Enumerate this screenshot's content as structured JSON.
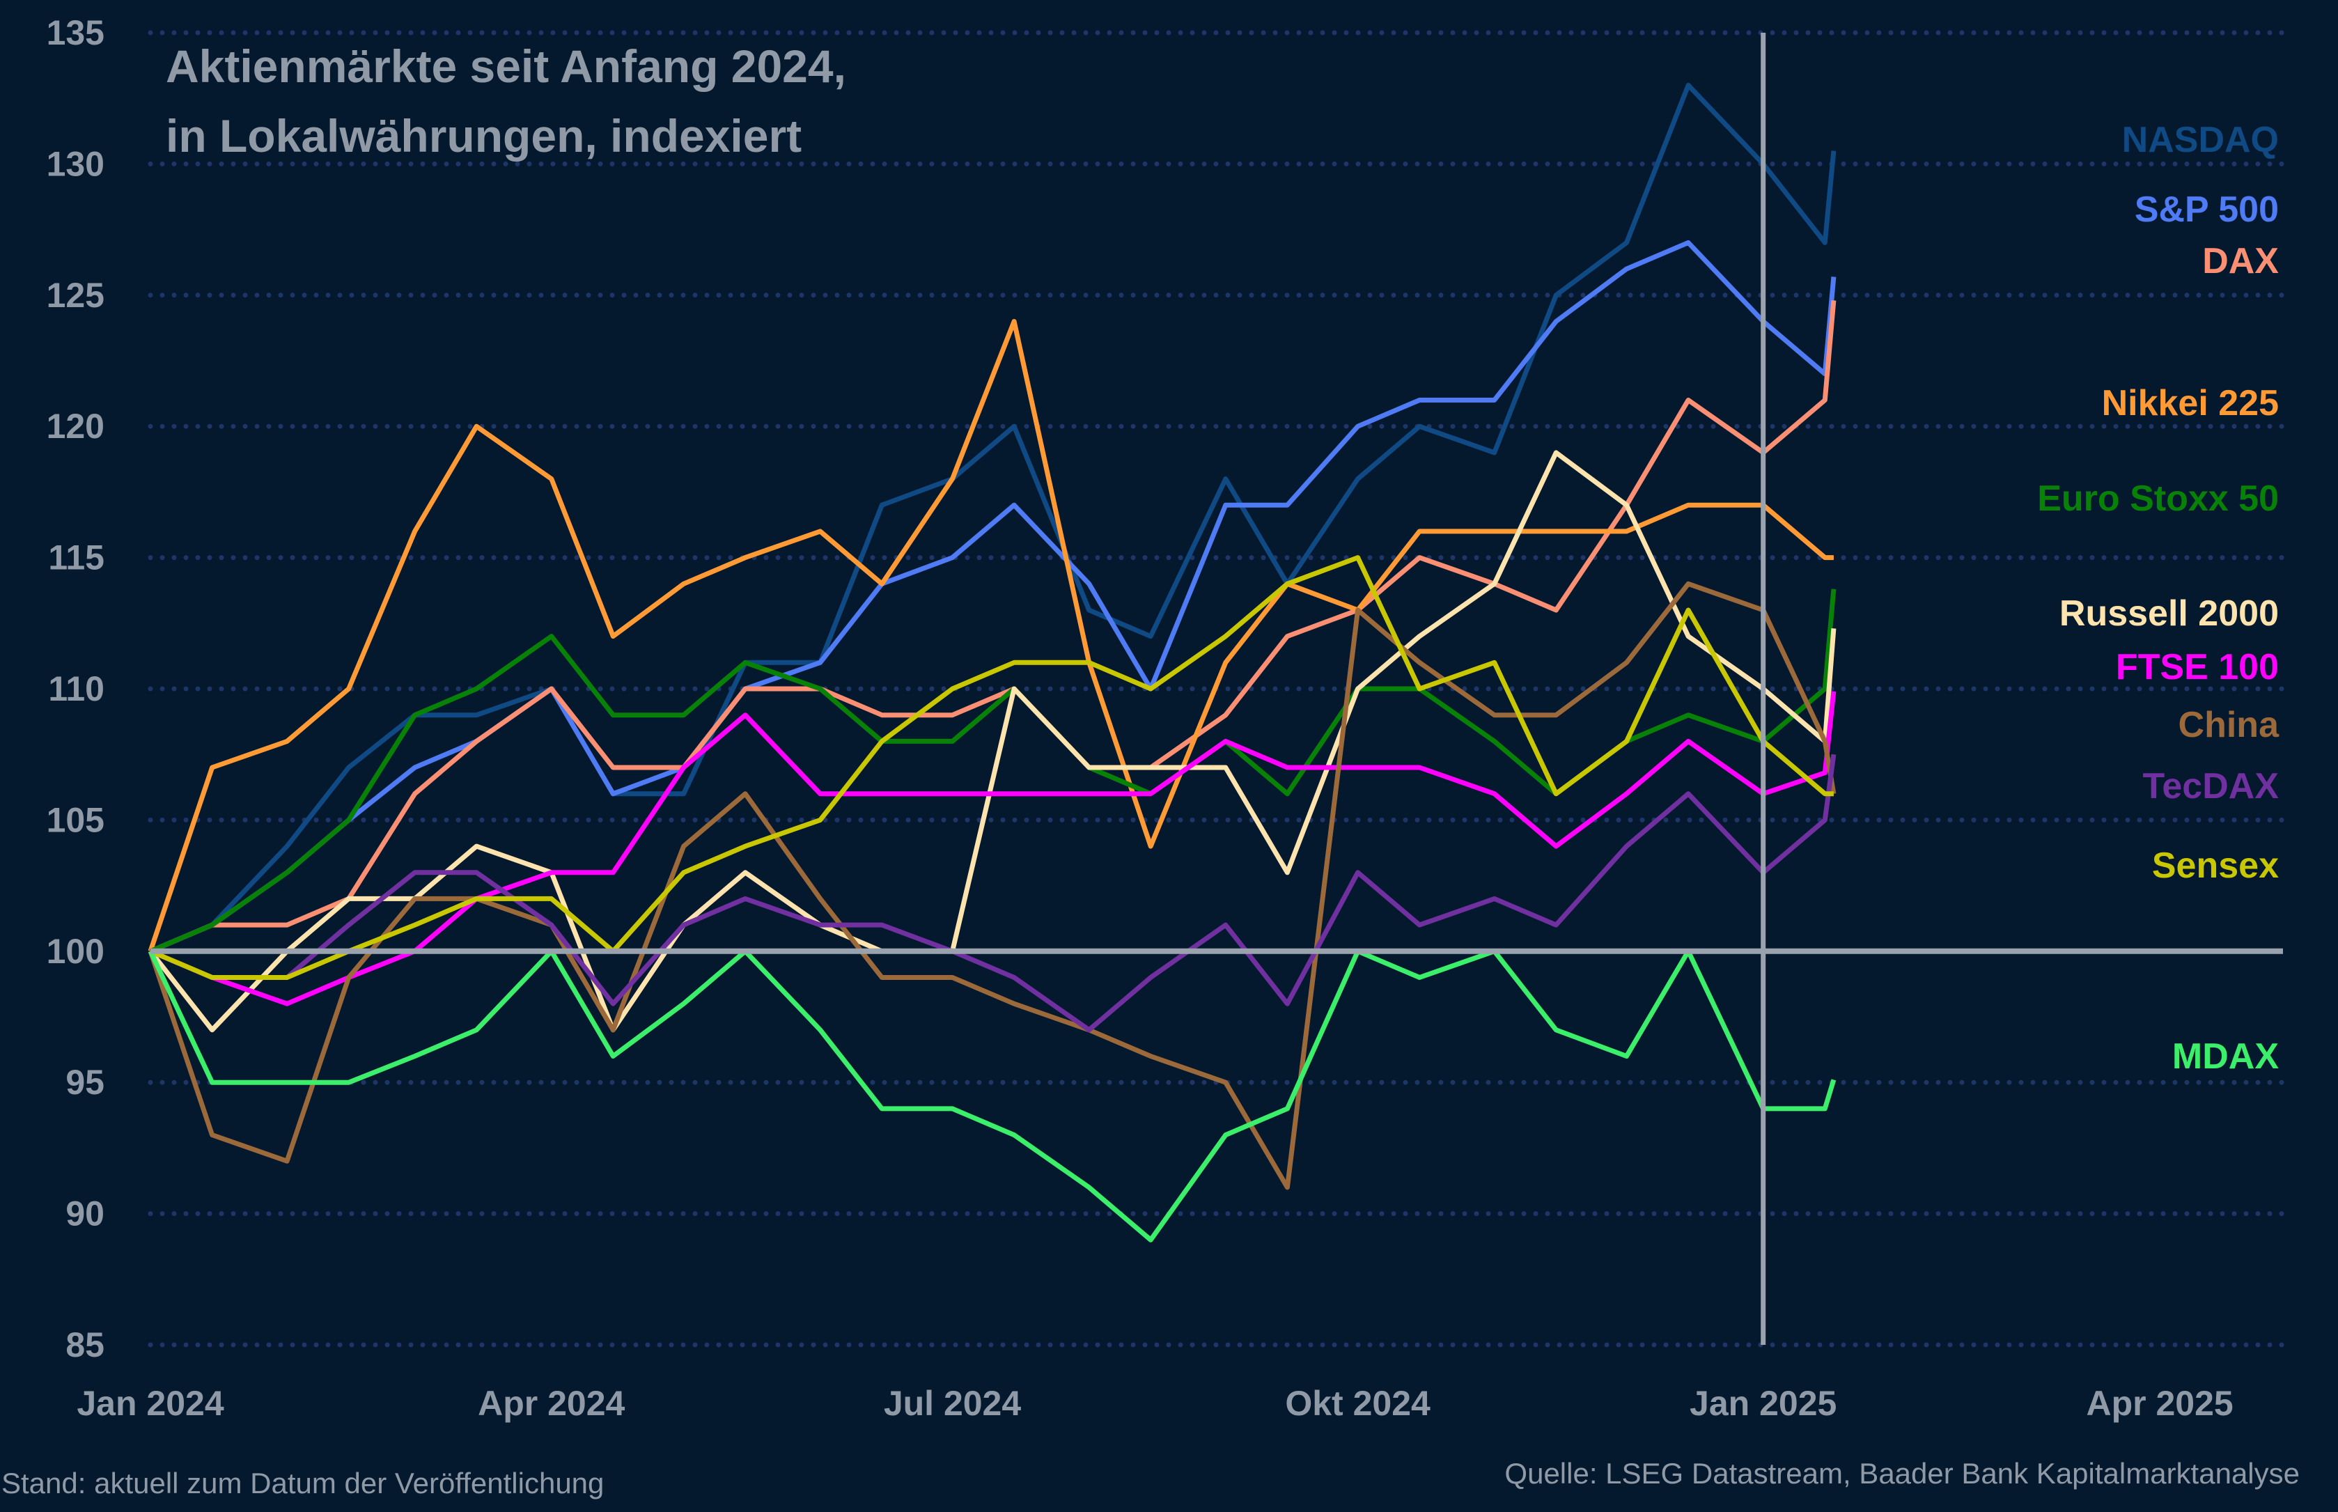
{
  "chart_data": {
    "type": "line",
    "title": "Aktienmärkte seit Anfang 2024,",
    "subtitle": "in Lokalwährungen, indexiert",
    "xlabel": "",
    "ylabel": "",
    "ylim": [
      85,
      135
    ],
    "yticks": [
      "135",
      "130",
      "125",
      "120",
      "115",
      "110",
      "105",
      "100",
      "95",
      "90",
      "85"
    ],
    "xticks": [
      {
        "label": "Jan 2024",
        "date": "2024-01-01"
      },
      {
        "label": "Apr 2024",
        "date": "2024-04-01"
      },
      {
        "label": "Jul 2024",
        "date": "2024-07-01"
      },
      {
        "label": "Okt 2024",
        "date": "2024-10-01"
      },
      {
        "label": "Jan 2025",
        "date": "2025-01-01"
      },
      {
        "label": "Apr 2025",
        "date": "2025-04-01"
      }
    ],
    "xlim": [
      "2024-01-01",
      "2025-04-30"
    ],
    "grid": true,
    "reference_line_y": 100,
    "reference_line_x": "2025-01-01",
    "legend_placement": "right, labels at line ends",
    "x": [
      "2024-01-01",
      "2024-01-15",
      "2024-02-01",
      "2024-02-15",
      "2024-03-01",
      "2024-03-15",
      "2024-04-01",
      "2024-04-15",
      "2024-05-01",
      "2024-05-15",
      "2024-06-01",
      "2024-06-15",
      "2024-07-01",
      "2024-07-15",
      "2024-08-01",
      "2024-08-15",
      "2024-09-01",
      "2024-09-15",
      "2024-10-01",
      "2024-10-15",
      "2024-11-01",
      "2024-11-15",
      "2024-12-01",
      "2024-12-15",
      "2025-01-01",
      "2025-01-15",
      "2025-01-17"
    ],
    "series": [
      {
        "name": "NASDAQ",
        "color": "#0f4a85",
        "values": [
          100,
          101,
          104,
          107,
          109,
          109,
          110,
          106,
          106,
          111,
          111,
          117,
          118,
          120,
          113,
          112,
          118,
          114,
          118,
          120,
          119,
          125,
          127,
          133,
          130,
          127,
          130.5
        ]
      },
      {
        "name": "S&P 500",
        "color": "#4f7bf5",
        "values": [
          100,
          101,
          103,
          105,
          107,
          108,
          110,
          106,
          107,
          110,
          111,
          114,
          115,
          117,
          114,
          110,
          117,
          117,
          120,
          121,
          121,
          124,
          126,
          127,
          124,
          122,
          125.7
        ]
      },
      {
        "name": "DAX",
        "color": "#fa8f73",
        "values": [
          100,
          101,
          101,
          102,
          106,
          108,
          110,
          107,
          107,
          110,
          110,
          109,
          109,
          110,
          107,
          107,
          109,
          112,
          113,
          115,
          114,
          113,
          117,
          121,
          119,
          121,
          124.8
        ]
      },
      {
        "name": "Nikkei 225",
        "color": "#ff9a35",
        "values": [
          100,
          107,
          108,
          110,
          116,
          120,
          118,
          112,
          114,
          115,
          116,
          114,
          118,
          124,
          111,
          104,
          111,
          114,
          113,
          116,
          116,
          116,
          116,
          117,
          117,
          115,
          115
        ]
      },
      {
        "name": "Euro Stoxx 50",
        "color": "#078207",
        "values": [
          100,
          101,
          103,
          105,
          109,
          110,
          112,
          109,
          109,
          111,
          110,
          108,
          108,
          110,
          107,
          106,
          108,
          106,
          110,
          110,
          108,
          106,
          108,
          109,
          108,
          110,
          113.8
        ]
      },
      {
        "name": "Russell 2000",
        "color": "#fde3ad",
        "values": [
          100,
          97,
          100,
          102,
          102,
          104,
          103,
          97,
          101,
          103,
          101,
          100,
          100,
          110,
          107,
          107,
          107,
          103,
          110,
          112,
          114,
          119,
          117,
          112,
          110,
          108,
          112.3
        ]
      },
      {
        "name": "FTSE 100",
        "color": "#ff00ff",
        "values": [
          100,
          99,
          98,
          99,
          100,
          102,
          103,
          103,
          107,
          109,
          106,
          106,
          106,
          106,
          106,
          106,
          108,
          107,
          107,
          107,
          106,
          104,
          106,
          108,
          106,
          106.8,
          109.9
        ]
      },
      {
        "name": "China",
        "color": "#9c6a3a",
        "values": [
          100,
          93,
          92,
          99,
          102,
          102,
          101,
          97,
          104,
          106,
          102,
          99,
          99,
          98,
          97,
          96,
          95,
          91,
          113,
          111,
          109,
          109,
          111,
          114,
          113,
          108,
          106
        ]
      },
      {
        "name": "TecDAX",
        "color": "#7030a0",
        "values": [
          100,
          99,
          99,
          101,
          103,
          103,
          101,
          98,
          101,
          102,
          101,
          101,
          100,
          99,
          97,
          99,
          101,
          98,
          103,
          101,
          102,
          101,
          104,
          106,
          103,
          105,
          107.5
        ]
      },
      {
        "name": "Sensex",
        "color": "#c9c800",
        "values": [
          100,
          99,
          99,
          100,
          101,
          102,
          102,
          100,
          103,
          104,
          105,
          108,
          110,
          111,
          111,
          110,
          112,
          114,
          115,
          110,
          111,
          106,
          108,
          113,
          108,
          106,
          106
        ]
      },
      {
        "name": "MDAX",
        "color": "#3cef6a",
        "values": [
          100,
          95,
          95,
          95,
          96,
          97,
          100,
          96,
          98,
          100,
          97,
          94,
          94,
          93,
          91,
          89,
          93,
          94,
          100,
          99,
          100,
          97,
          96,
          100,
          94,
          94,
          95.1
        ]
      }
    ]
  },
  "footer": {
    "left": "Stand: aktuell zum Datum der Veröffentlichung",
    "right": "Quelle: LSEG Datastream, Baader Bank Kapitalmarktanalyse"
  },
  "colors": {
    "background": "#04182e",
    "grid": "#1e3568",
    "axis_text": "#8f9aa6",
    "reference": "#9aa3ad"
  }
}
